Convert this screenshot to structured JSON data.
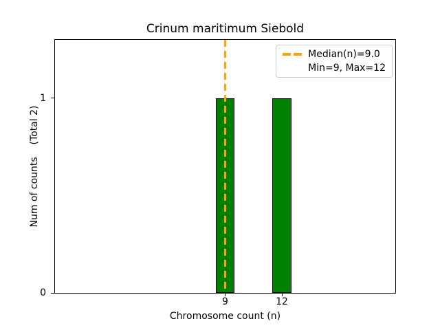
{
  "chart_data": {
    "type": "bar",
    "title": "Crinum maritimum Siebold",
    "xlabel": "Chromosome count (n)",
    "ylabel": "Num of counts    (Total 2)",
    "x": [
      9,
      12
    ],
    "values": [
      1,
      1
    ],
    "total": 2,
    "bar_width": 1,
    "xlim": [
      0,
      18
    ],
    "ylim": [
      0,
      1.3
    ],
    "xticks": [
      9,
      12
    ],
    "yticks": [
      0,
      1
    ],
    "grid": false,
    "median": 9.0,
    "min": 9,
    "max": 12,
    "colors": {
      "bar_fill": "#008000",
      "bar_edge": "#000000",
      "median_line": "#FFA500",
      "legend_border": "#cccccc",
      "axis": "#000000",
      "background": "#ffffff"
    },
    "legend": {
      "position": "upper right",
      "entries": [
        {
          "label": "Median(n)=9.0",
          "marker": "orange-dashed-line"
        },
        {
          "label": "Min=9, Max=12",
          "marker": "none"
        }
      ]
    }
  }
}
